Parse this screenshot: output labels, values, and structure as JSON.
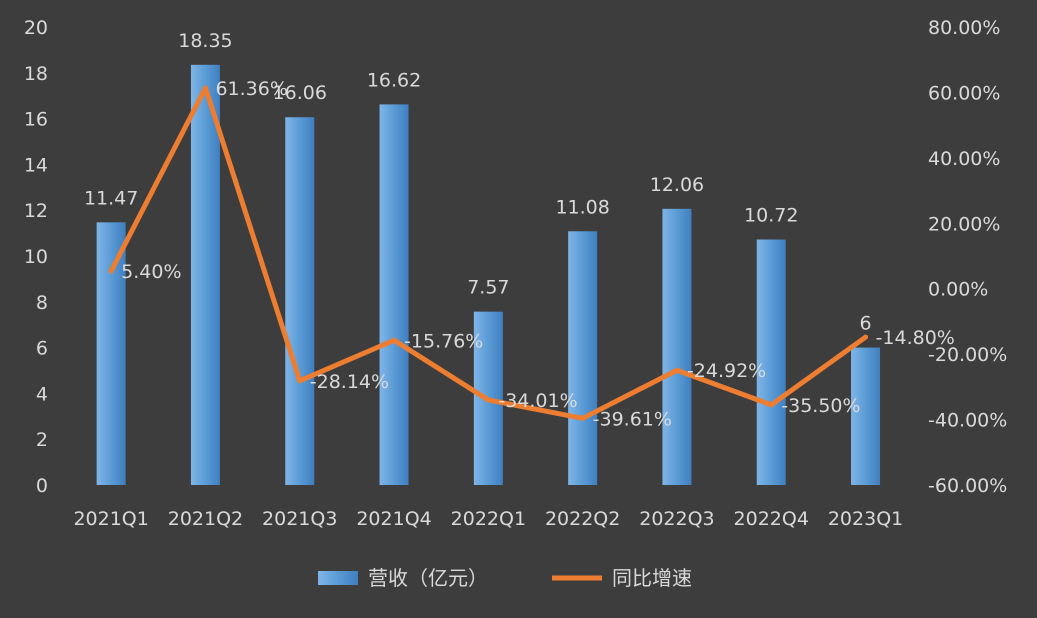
{
  "chart_data": {
    "type": "bar+line",
    "categories": [
      "2021Q1",
      "2021Q2",
      "2021Q3",
      "2021Q4",
      "2022Q1",
      "2022Q2",
      "2022Q3",
      "2022Q4",
      "2023Q1"
    ],
    "series": [
      {
        "name": "营收（亿元）",
        "type": "bar",
        "axis": "left",
        "values": [
          11.47,
          18.35,
          16.06,
          16.62,
          7.57,
          11.08,
          12.06,
          10.72,
          6
        ],
        "labels": [
          "11.47",
          "18.35",
          "16.06",
          "16.62",
          "7.57",
          "11.08",
          "12.06",
          "10.72",
          "6"
        ]
      },
      {
        "name": "同比增速",
        "type": "line",
        "axis": "right",
        "values": [
          5.4,
          61.36,
          -28.14,
          -15.76,
          -34.01,
          -39.61,
          -24.92,
          -35.5,
          -14.8
        ],
        "labels": [
          "5.40%",
          "61.36%",
          "-28.14%",
          "-15.76%",
          "-34.01%",
          "-39.61%",
          "-24.92%",
          "-35.50%",
          "-14.80%"
        ]
      }
    ],
    "y_left": {
      "min": 0,
      "max": 20,
      "step": 2,
      "ticks": [
        "0",
        "2",
        "4",
        "6",
        "8",
        "10",
        "12",
        "14",
        "16",
        "18",
        "20"
      ]
    },
    "y_right": {
      "min": -60,
      "max": 80,
      "step": 20,
      "ticks": [
        "-60.00%",
        "-40.00%",
        "-20.00%",
        "0.00%",
        "20.00%",
        "40.00%",
        "60.00%",
        "80.00%"
      ]
    },
    "legend": {
      "position": "bottom"
    },
    "grid": false,
    "colors": {
      "background": "#3d3d3d",
      "bar": "#5b9bd5",
      "line": "#ed7d31",
      "text": "#d9d9d9"
    }
  }
}
